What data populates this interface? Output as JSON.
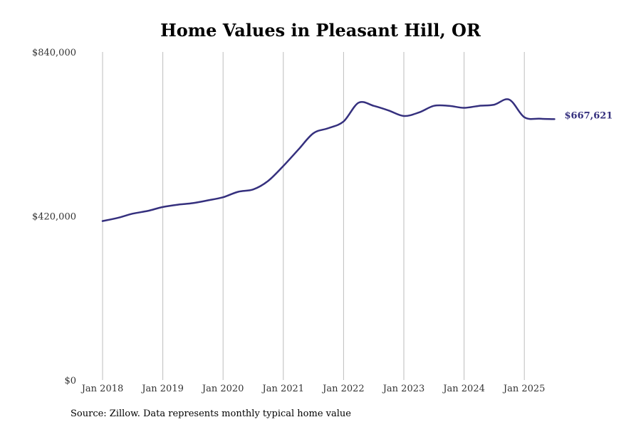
{
  "chart_data": {
    "type": "line",
    "title": "Home Values in Pleasant Hill, OR",
    "xlabel": "",
    "ylabel": "",
    "ylim": [
      0,
      840000
    ],
    "y_ticks": [
      {
        "value": 0,
        "label": "$0"
      },
      {
        "value": 420000,
        "label": "$420,000"
      },
      {
        "value": 840000,
        "label": "$840,000"
      }
    ],
    "x_ticks": [
      "Jan 2018",
      "Jan 2019",
      "Jan 2020",
      "Jan 2021",
      "Jan 2022",
      "Jan 2023",
      "Jan 2024",
      "Jan 2025"
    ],
    "grid": "vertical",
    "line_color": "#35307e",
    "series": [
      {
        "x": [
          "2018-01",
          "2018-04",
          "2018-07",
          "2018-10",
          "2019-01",
          "2019-04",
          "2019-07",
          "2019-10",
          "2020-01",
          "2020-04",
          "2020-07",
          "2020-10",
          "2021-01",
          "2021-04",
          "2021-07",
          "2021-10",
          "2022-01",
          "2022-04",
          "2022-07",
          "2022-10",
          "2023-01",
          "2023-04",
          "2023-07",
          "2023-10",
          "2024-01",
          "2024-04",
          "2024-07",
          "2024-10",
          "2025-01",
          "2025-04",
          "2025-07"
        ],
        "values": [
          407000,
          415000,
          426000,
          433000,
          443000,
          449000,
          453000,
          460000,
          468000,
          482000,
          488000,
          510000,
          548000,
          590000,
          632000,
          645000,
          662000,
          710000,
          702000,
          690000,
          676000,
          685000,
          702000,
          702000,
          697000,
          702000,
          705000,
          718000,
          673000,
          669000,
          668000
        ]
      }
    ],
    "end_label": "$667,621"
  },
  "source": "Source: Zillow. Data represents monthly typical home value"
}
